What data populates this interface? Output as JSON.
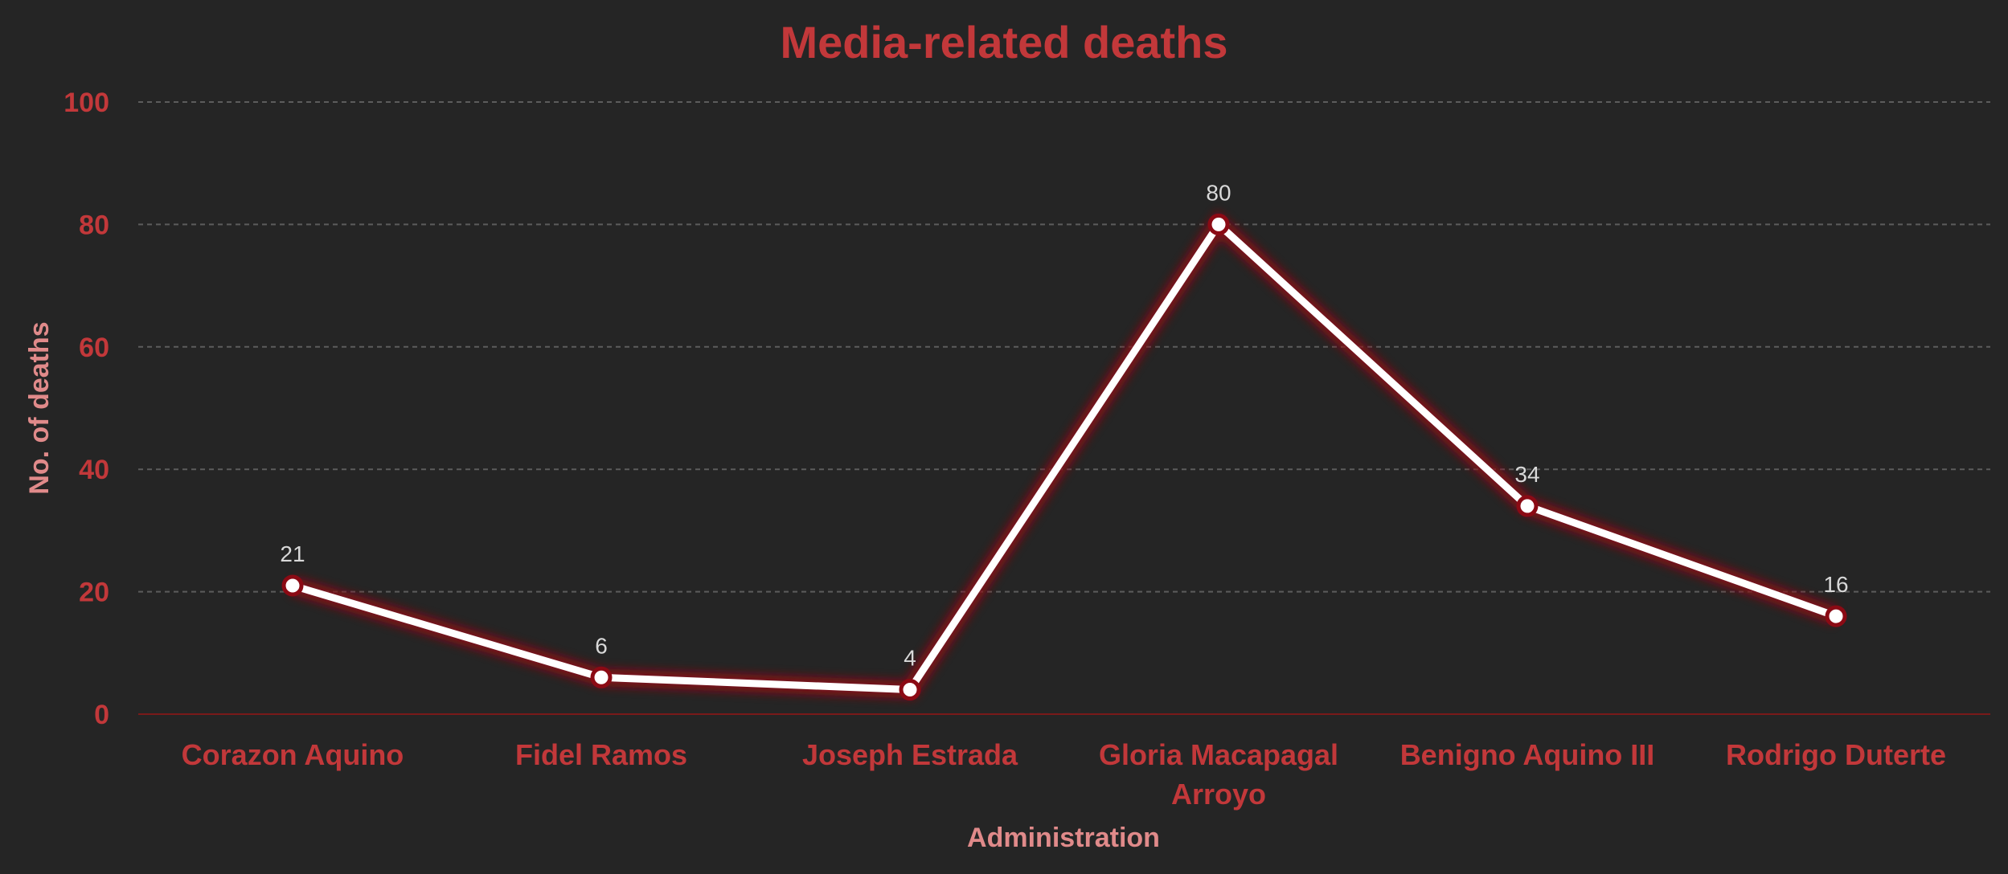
{
  "chart_data": {
    "type": "line",
    "title": "Media-related deaths",
    "xlabel": "Administration",
    "ylabel": "No. of deaths",
    "categories": [
      [
        "Corazon Aquino"
      ],
      [
        "Fidel Ramos"
      ],
      [
        "Joseph Estrada"
      ],
      [
        "Gloria Macapagal",
        "Arroyo"
      ],
      [
        "Benigno Aquino III"
      ],
      [
        "Rodrigo Duterte"
      ]
    ],
    "values": [
      21,
      6,
      4,
      80,
      34,
      16
    ],
    "data_labels": [
      "21",
      "6",
      "4",
      "80",
      "34",
      "16"
    ],
    "ylim": [
      0,
      100
    ],
    "yticks": [
      0,
      20,
      40,
      60,
      80,
      100
    ],
    "ytick_labels": [
      "0",
      "20",
      "40",
      "60",
      "80",
      "100"
    ],
    "grid": true,
    "legend": "none",
    "colors": {
      "background": "#252525",
      "title": "#c2383a",
      "tick_labels": "#c2383a",
      "axis_labels": "#e08a8a",
      "line": "#ffffff",
      "line_glow": "#8b0a14",
      "marker_fill": "#ffffff",
      "marker_stroke": "#8b0a14",
      "data_labels": "#d9d9d9",
      "gridlines": "#5c5c5c",
      "baseline": "#7a1a1a"
    }
  }
}
